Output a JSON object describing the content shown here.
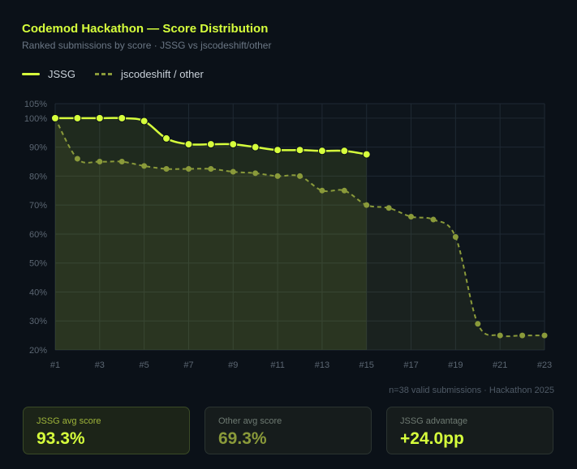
{
  "header": {
    "title": "Codemod Hackathon — Score Distribution",
    "subtitle": "Ranked submissions by score · JSSG vs jscodeshift/other"
  },
  "legend": {
    "jssg": "JSSG",
    "other": "jscodeshift / other"
  },
  "footnote": "n=38 valid submissions · Hackathon 2025",
  "cards": [
    {
      "label": "JSSG avg score",
      "value": "93.3%"
    },
    {
      "label": "Other avg score",
      "value": "69.3%"
    },
    {
      "label": "JSSG advantage",
      "value": "+24.0pp"
    }
  ],
  "colors": {
    "jssg": "#d6ff3c",
    "other": "#8a9a3a",
    "grid": "#1f2933",
    "axis_text": "#5b6672"
  },
  "chart_data": {
    "type": "line",
    "x": [
      1,
      2,
      3,
      4,
      5,
      6,
      7,
      8,
      9,
      10,
      11,
      12,
      13,
      14,
      15,
      16,
      17,
      18,
      19,
      20,
      21,
      22,
      23
    ],
    "x_tick_labels": [
      "#1",
      "#3",
      "#5",
      "#7",
      "#9",
      "#11",
      "#13",
      "#15",
      "#17",
      "#19",
      "#21",
      "#23"
    ],
    "y_tick_labels": [
      "20%",
      "30%",
      "40%",
      "50%",
      "60%",
      "70%",
      "80%",
      "90%",
      "100%",
      "105%"
    ],
    "ylim": [
      20,
      105
    ],
    "grid": true,
    "series": [
      {
        "name": "JSSG",
        "x": [
          1,
          2,
          3,
          4,
          5,
          6,
          7,
          8,
          9,
          10,
          11,
          12,
          13,
          14,
          15
        ],
        "values": [
          100,
          100,
          100,
          100,
          99,
          93,
          91,
          91,
          91,
          90,
          89,
          89,
          88.7,
          88.7,
          87.5
        ]
      },
      {
        "name": "jscodeshift / other",
        "x": [
          1,
          2,
          3,
          4,
          5,
          6,
          7,
          8,
          9,
          10,
          11,
          12,
          13,
          14,
          15,
          16,
          17,
          18,
          19,
          20,
          21,
          22,
          23
        ],
        "values": [
          100,
          86,
          85,
          85,
          83.5,
          82.5,
          82.5,
          82.5,
          81.5,
          81,
          80,
          80,
          75,
          75,
          70,
          69,
          66,
          65,
          59,
          29,
          25,
          25,
          25
        ]
      }
    ]
  }
}
